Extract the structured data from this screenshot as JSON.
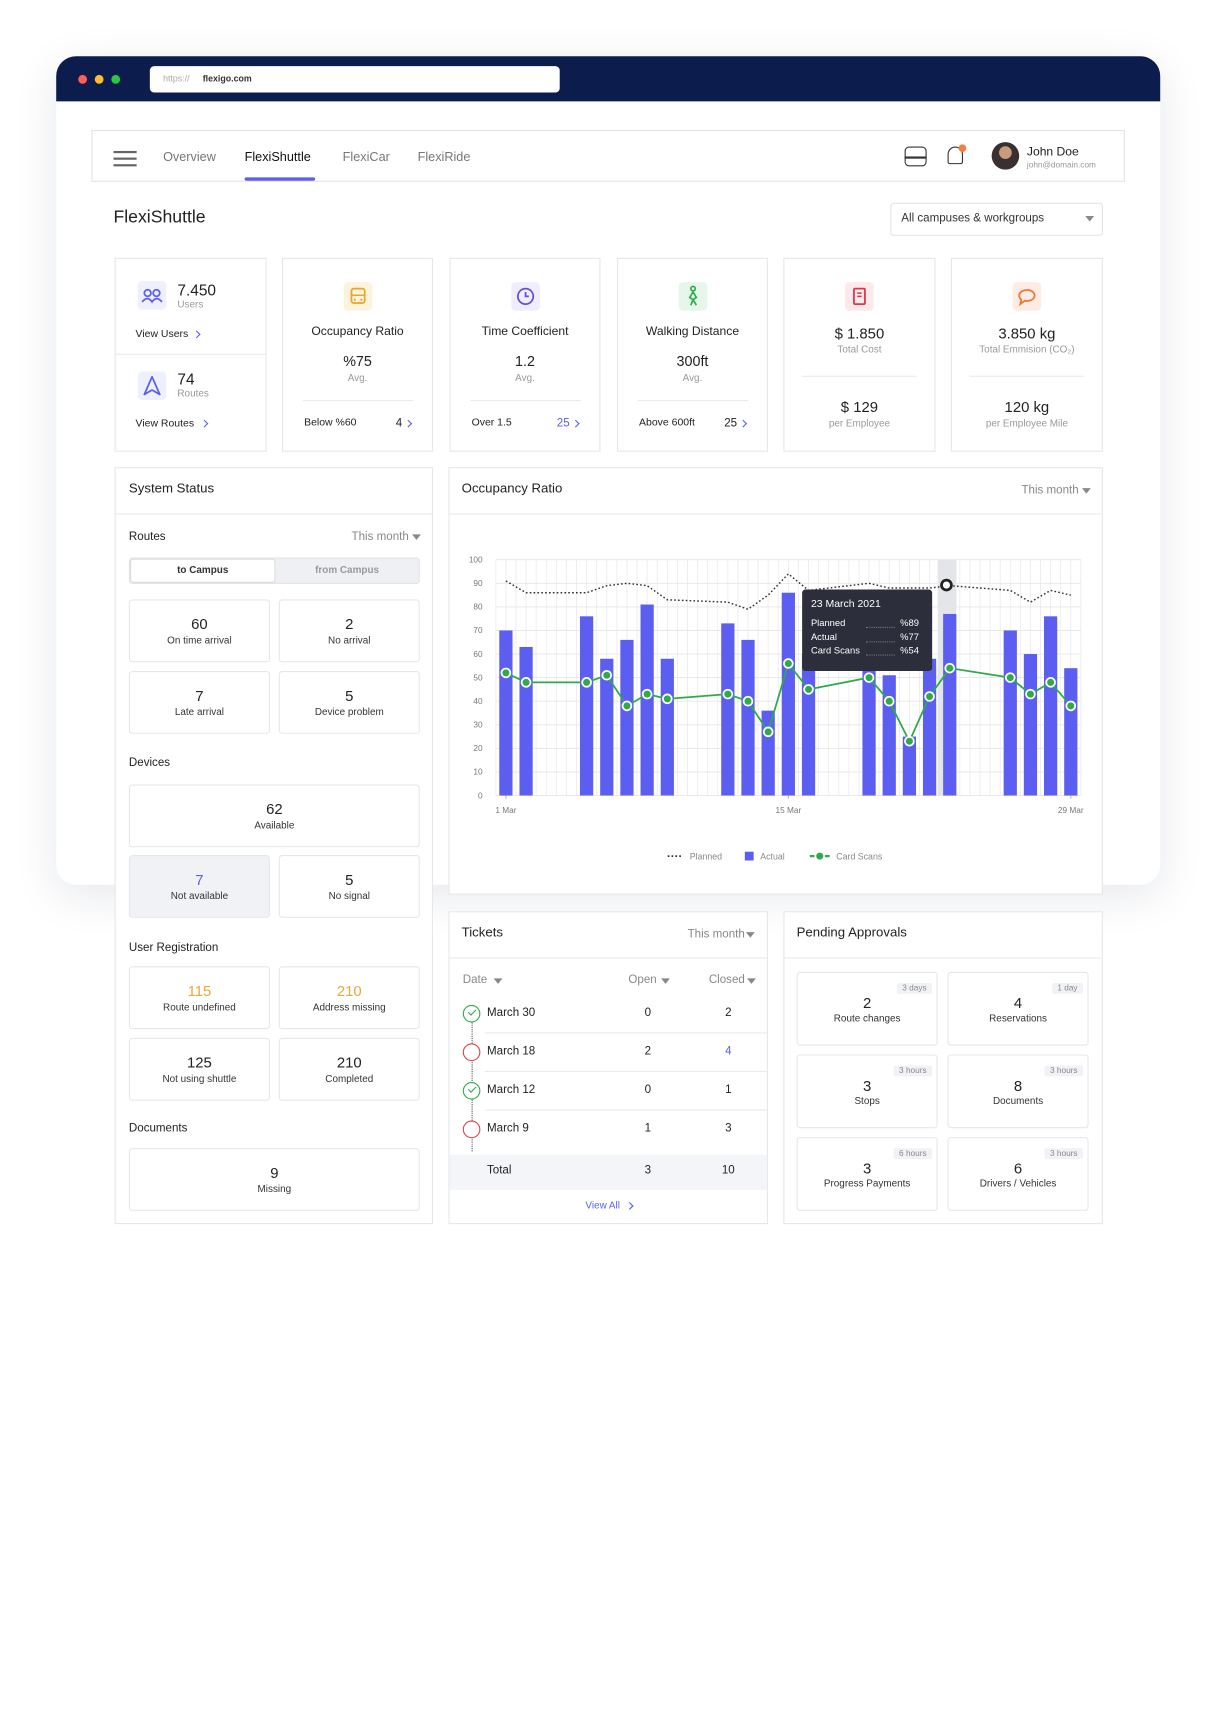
{
  "browser": {
    "url_scheme": "https://",
    "url_host": "flexigo.com"
  },
  "nav": {
    "tabs": [
      "Overview",
      "FlexiShuttle",
      "FlexiCar",
      "FlexiRide"
    ],
    "active_tab": 1,
    "user_name": "John Doe",
    "user_email": "john@domain.com"
  },
  "header": {
    "title": "FlexiShuttle",
    "filter": "All campuses & workgroups"
  },
  "summary": {
    "users": {
      "value": "7.450",
      "label": "Users",
      "link": "View Users"
    },
    "routes": {
      "value": "74",
      "label": "Routes",
      "link": "View Routes"
    }
  },
  "kpis": [
    {
      "title": "Occupancy Ratio",
      "value": "%75",
      "sub": "Avg.",
      "footer_label": "Below %60",
      "footer_value": "4"
    },
    {
      "title": "Time Coefficient",
      "value": "1.2",
      "sub": "Avg.",
      "footer_label": "Over 1.5",
      "footer_value": "25"
    },
    {
      "title": "Walking Distance",
      "value": "300ft",
      "sub": "Avg.",
      "footer_label": "Above 600ft",
      "footer_value": "25"
    }
  ],
  "totals": [
    {
      "value": "$ 1.850",
      "label": "Total Cost",
      "value2": "$ 129",
      "label2": "per Employee"
    },
    {
      "value": "3.850 kg",
      "label": "Total Emmision (CO₂)",
      "value2": "120 kg",
      "label2": "per Employee Mile"
    }
  ],
  "system_status": {
    "title": "System Status",
    "routes": {
      "title": "Routes",
      "period": "This month",
      "toggle": [
        "to Campus",
        "from Campus"
      ],
      "tiles": [
        {
          "value": 60,
          "label": "On time arrival"
        },
        {
          "value": 2,
          "label": "No arrival"
        },
        {
          "value": 7,
          "label": "Late arrival"
        },
        {
          "value": 5,
          "label": "Device problem"
        }
      ]
    },
    "devices": {
      "title": "Devices",
      "tiles": [
        {
          "value": 62,
          "label": "Available"
        },
        {
          "value": 7,
          "label": "Not available"
        },
        {
          "value": 5,
          "label": "No signal"
        }
      ]
    },
    "user_registration": {
      "title": "User Registration",
      "tiles": [
        {
          "value": 115,
          "label": "Route undefined"
        },
        {
          "value": 210,
          "label": "Address missing"
        },
        {
          "value": 125,
          "label": "Not using shuttle"
        },
        {
          "value": 210,
          "label": "Completed"
        }
      ]
    },
    "documents": {
      "title": "Documents",
      "tiles": [
        {
          "value": 9,
          "label": "Missing"
        }
      ]
    }
  },
  "chart_panel": {
    "title": "Occupancy Ratio",
    "period": "This month"
  },
  "chart_data": {
    "type": "bar",
    "x": [
      1,
      2,
      5,
      6,
      7,
      8,
      9,
      12,
      13,
      14,
      15,
      16,
      19,
      20,
      21,
      22,
      23,
      26,
      27,
      28,
      29
    ],
    "series": [
      {
        "name": "Planned",
        "type": "line",
        "style": "dotted",
        "color": "#333333",
        "values": [
          91,
          86,
          86,
          89,
          90,
          89,
          83,
          82,
          79,
          85,
          94,
          87,
          90,
          88,
          88,
          88,
          89,
          87,
          82,
          87,
          85
        ]
      },
      {
        "name": "Actual",
        "type": "bar",
        "color": "#5b5ef0",
        "values": [
          70,
          63,
          76,
          58,
          66,
          81,
          58,
          73,
          66,
          36,
          86,
          60,
          55,
          51,
          25,
          58,
          77,
          70,
          60,
          76,
          54
        ]
      },
      {
        "name": "Card Scans",
        "type": "line",
        "style": "markers",
        "color": "#2eaa4a",
        "values": [
          52,
          48,
          48,
          51,
          38,
          43,
          41,
          43,
          40,
          27,
          56,
          45,
          50,
          40,
          23,
          42,
          54,
          50,
          43,
          48,
          38
        ]
      }
    ],
    "xlim": [
      0.5,
      29.5
    ],
    "xticks": [
      {
        "value": 1,
        "label": "1 Mar"
      },
      {
        "value": 15,
        "label": "15 Mar"
      },
      {
        "value": 29,
        "label": "29 Mar"
      }
    ],
    "ylim": [
      0,
      100
    ],
    "yticks": [
      0,
      10,
      20,
      30,
      40,
      50,
      60,
      70,
      80,
      90,
      100
    ],
    "grid": true,
    "tooltip": {
      "title": "23 March 2021",
      "rows": [
        {
          "label": "Planned",
          "value": "%89"
        },
        {
          "label": "Actual",
          "value": "%77"
        },
        {
          "label": "Card Scans",
          "value": "%54"
        }
      ]
    }
  },
  "tickets": {
    "title": "Tickets",
    "period": "This month",
    "columns": [
      "Date",
      "Open",
      "Closed"
    ],
    "rows": [
      {
        "date": "March 30",
        "open": 0,
        "closed": 2,
        "status": "resolved"
      },
      {
        "date": "March 18",
        "open": 2,
        "closed": 4,
        "status": "open"
      },
      {
        "date": "March 12",
        "open": 0,
        "closed": 1,
        "status": "resolved"
      },
      {
        "date": "March 9",
        "open": 1,
        "closed": 3,
        "status": "open"
      }
    ],
    "total": {
      "label": "Total",
      "open": 3,
      "closed": 10
    },
    "link": "View All"
  },
  "approvals": {
    "title": "Pending Approvals",
    "items": [
      {
        "value": 2,
        "label": "Route changes",
        "age": "3 days"
      },
      {
        "value": 4,
        "label": "Reservations",
        "age": "1 day"
      },
      {
        "value": 3,
        "label": "Stops",
        "age": "3 hours"
      },
      {
        "value": 8,
        "label": "Documents",
        "age": "3 hours"
      },
      {
        "value": 3,
        "label": "Progress Payments",
        "age": "6 hours"
      },
      {
        "value": 6,
        "label": "Drivers / Vehicles",
        "age": "3 hours"
      }
    ]
  }
}
